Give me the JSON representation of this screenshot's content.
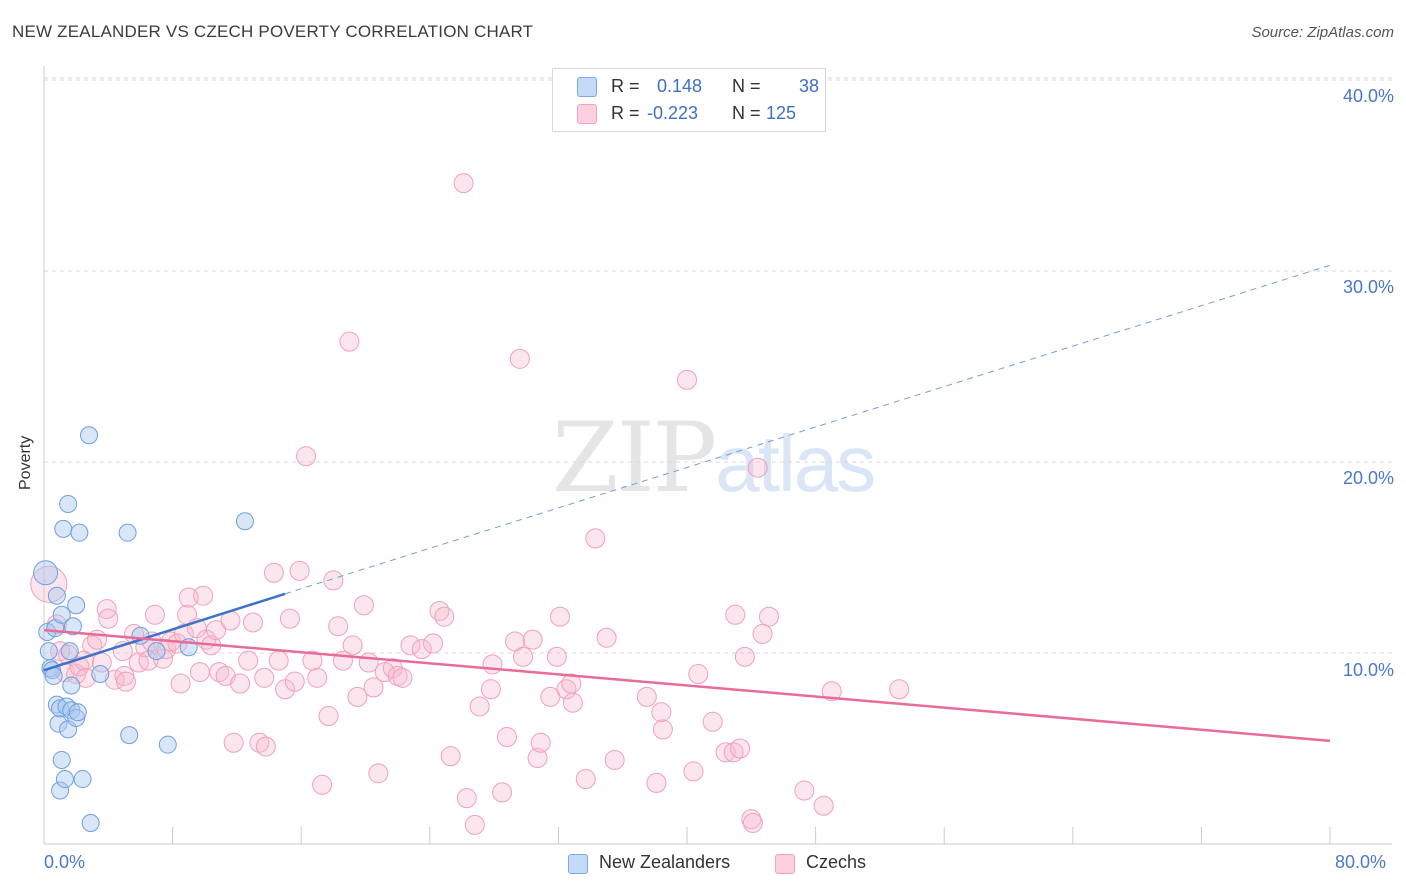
{
  "title": "NEW ZEALANDER VS CZECH POVERTY CORRELATION CHART",
  "source": "Source: ZipAtlas.com",
  "ylabel": "Poverty",
  "watermark": {
    "zip": "ZIP",
    "atlas": "atlas"
  },
  "legend": {
    "rows": [
      {
        "r_label": "R =",
        "r_value": "0.148",
        "n_label": "N =",
        "n_value": "38",
        "color": "#a8c8f0"
      },
      {
        "r_label": "R =",
        "r_value": "-0.223",
        "n_label": "N =",
        "n_value": "125",
        "color": "#f7b6cb"
      }
    ]
  },
  "bottom_legend": [
    {
      "label": "New Zealanders",
      "color": "#a8c8f0"
    },
    {
      "label": "Czechs",
      "color": "#f7b6cb"
    }
  ],
  "y_ticks": [
    "40.0%",
    "30.0%",
    "20.0%",
    "10.0%"
  ],
  "x_ticks": [
    "0.0%",
    "80.0%"
  ],
  "chart_data": {
    "type": "scatter",
    "title": "NEW ZEALANDER VS CZECH POVERTY CORRELATION CHART",
    "xlabel": "",
    "ylabel": "Poverty",
    "xlim": [
      0,
      80
    ],
    "ylim": [
      0,
      42
    ],
    "grid": true,
    "legend_position": "top-center",
    "series": [
      {
        "name": "New Zealanders",
        "color": "#7aaae8",
        "trend": {
          "x0": 0,
          "y0": 9.1,
          "x1": 15,
          "y1": 13.1,
          "dashed_to_x": 80,
          "dashed_to_y": 30.3,
          "color": "#3d73cc"
        },
        "points": [
          [
            0.1,
            14.2
          ],
          [
            0.2,
            11.1
          ],
          [
            0.3,
            10.1
          ],
          [
            0.4,
            9.2
          ],
          [
            0.5,
            9.1
          ],
          [
            0.6,
            8.8
          ],
          [
            0.7,
            11.3
          ],
          [
            0.8,
            13.0
          ],
          [
            0.8,
            7.3
          ],
          [
            0.9,
            6.3
          ],
          [
            1.0,
            7.1
          ],
          [
            1.0,
            2.8
          ],
          [
            1.1,
            12.0
          ],
          [
            1.1,
            4.4
          ],
          [
            1.2,
            16.5
          ],
          [
            1.3,
            3.4
          ],
          [
            1.4,
            7.2
          ],
          [
            1.5,
            6.0
          ],
          [
            1.5,
            17.8
          ],
          [
            1.6,
            10.1
          ],
          [
            1.7,
            7.0
          ],
          [
            1.7,
            8.3
          ],
          [
            1.8,
            11.4
          ],
          [
            2.0,
            12.5
          ],
          [
            2.0,
            6.6
          ],
          [
            2.1,
            6.9
          ],
          [
            2.2,
            16.3
          ],
          [
            2.4,
            3.4
          ],
          [
            2.8,
            21.4
          ],
          [
            2.9,
            1.1
          ],
          [
            3.5,
            8.9
          ],
          [
            5.2,
            16.3
          ],
          [
            5.3,
            5.7
          ],
          [
            6.0,
            10.9
          ],
          [
            7.0,
            10.1
          ],
          [
            7.7,
            5.2
          ],
          [
            12.5,
            16.9
          ],
          [
            9.0,
            10.3
          ]
        ]
      },
      {
        "name": "Czechs",
        "color": "#f4a3bd",
        "trend": {
          "x0": 0,
          "y0": 11.2,
          "x1": 80,
          "y1": 5.4,
          "color": "#e86b9a"
        },
        "points": [
          [
            0.3,
            13.6
          ],
          [
            0.8,
            11.5
          ],
          [
            1.0,
            10.1
          ],
          [
            1.3,
            9.0
          ],
          [
            1.5,
            9.9
          ],
          [
            2.0,
            8.9
          ],
          [
            2.2,
            9.3
          ],
          [
            2.5,
            9.6
          ],
          [
            2.6,
            8.7
          ],
          [
            3.0,
            10.4
          ],
          [
            3.3,
            10.7
          ],
          [
            3.6,
            9.5
          ],
          [
            3.9,
            12.3
          ],
          [
            4.0,
            11.8
          ],
          [
            4.4,
            8.6
          ],
          [
            4.9,
            10.1
          ],
          [
            5.0,
            8.8
          ],
          [
            5.1,
            8.5
          ],
          [
            5.6,
            11.0
          ],
          [
            5.9,
            9.5
          ],
          [
            6.3,
            10.3
          ],
          [
            6.5,
            9.6
          ],
          [
            6.7,
            10.6
          ],
          [
            6.9,
            12.0
          ],
          [
            7.4,
            9.7
          ],
          [
            7.6,
            10.2
          ],
          [
            7.9,
            10.6
          ],
          [
            8.3,
            10.5
          ],
          [
            8.5,
            8.4
          ],
          [
            8.7,
            11.0
          ],
          [
            8.9,
            12.0
          ],
          [
            9.0,
            12.9
          ],
          [
            9.5,
            11.3
          ],
          [
            9.7,
            9.0
          ],
          [
            9.9,
            13.0
          ],
          [
            10.1,
            10.7
          ],
          [
            10.4,
            10.4
          ],
          [
            10.7,
            11.2
          ],
          [
            10.9,
            9.0
          ],
          [
            11.3,
            8.8
          ],
          [
            11.6,
            11.7
          ],
          [
            11.8,
            5.3
          ],
          [
            12.2,
            8.4
          ],
          [
            12.7,
            9.6
          ],
          [
            13.0,
            11.6
          ],
          [
            13.4,
            5.3
          ],
          [
            13.7,
            8.7
          ],
          [
            13.8,
            5.1
          ],
          [
            14.3,
            14.2
          ],
          [
            14.6,
            9.6
          ],
          [
            15.0,
            8.1
          ],
          [
            15.3,
            11.8
          ],
          [
            15.6,
            8.5
          ],
          [
            15.9,
            14.3
          ],
          [
            16.3,
            20.3
          ],
          [
            16.7,
            9.6
          ],
          [
            17.0,
            8.7
          ],
          [
            17.3,
            3.1
          ],
          [
            17.7,
            6.7
          ],
          [
            18.0,
            13.8
          ],
          [
            18.3,
            11.4
          ],
          [
            18.6,
            9.6
          ],
          [
            19.0,
            26.3
          ],
          [
            19.2,
            10.4
          ],
          [
            19.5,
            7.7
          ],
          [
            19.9,
            12.5
          ],
          [
            20.2,
            9.5
          ],
          [
            20.5,
            8.2
          ],
          [
            20.8,
            3.7
          ],
          [
            21.2,
            9.0
          ],
          [
            21.7,
            9.2
          ],
          [
            22.0,
            8.8
          ],
          [
            22.3,
            8.7
          ],
          [
            22.8,
            10.4
          ],
          [
            23.5,
            10.2
          ],
          [
            24.2,
            10.5
          ],
          [
            24.6,
            12.2
          ],
          [
            24.9,
            11.9
          ],
          [
            25.3,
            4.6
          ],
          [
            26.1,
            34.6
          ],
          [
            26.3,
            2.4
          ],
          [
            26.8,
            1.0
          ],
          [
            27.1,
            7.2
          ],
          [
            27.8,
            8.1
          ],
          [
            27.9,
            9.4
          ],
          [
            28.5,
            2.7
          ],
          [
            28.8,
            5.6
          ],
          [
            29.3,
            10.6
          ],
          [
            29.6,
            25.4
          ],
          [
            29.8,
            9.8
          ],
          [
            30.4,
            10.7
          ],
          [
            30.7,
            4.5
          ],
          [
            30.9,
            5.3
          ],
          [
            31.5,
            7.7
          ],
          [
            31.9,
            9.8
          ],
          [
            32.1,
            11.9
          ],
          [
            32.5,
            8.1
          ],
          [
            32.9,
            7.4
          ],
          [
            32.8,
            8.4
          ],
          [
            33.7,
            3.4
          ],
          [
            34.3,
            16.0
          ],
          [
            35.0,
            10.8
          ],
          [
            35.5,
            4.4
          ],
          [
            37.5,
            7.7
          ],
          [
            38.1,
            3.2
          ],
          [
            38.5,
            6.0
          ],
          [
            38.4,
            6.9
          ],
          [
            40.0,
            24.3
          ],
          [
            40.4,
            3.8
          ],
          [
            40.7,
            8.9
          ],
          [
            41.6,
            6.4
          ],
          [
            42.4,
            4.8
          ],
          [
            42.9,
            4.8
          ],
          [
            43.3,
            5.0
          ],
          [
            44.0,
            1.3
          ],
          [
            44.1,
            1.1
          ],
          [
            45.1,
            11.9
          ],
          [
            47.3,
            2.8
          ],
          [
            48.5,
            2.0
          ],
          [
            49.0,
            8.0
          ],
          [
            53.2,
            8.1
          ],
          [
            44.4,
            19.7
          ],
          [
            43.6,
            9.8
          ],
          [
            43.0,
            12.0
          ],
          [
            44.7,
            11.0
          ]
        ]
      }
    ]
  }
}
